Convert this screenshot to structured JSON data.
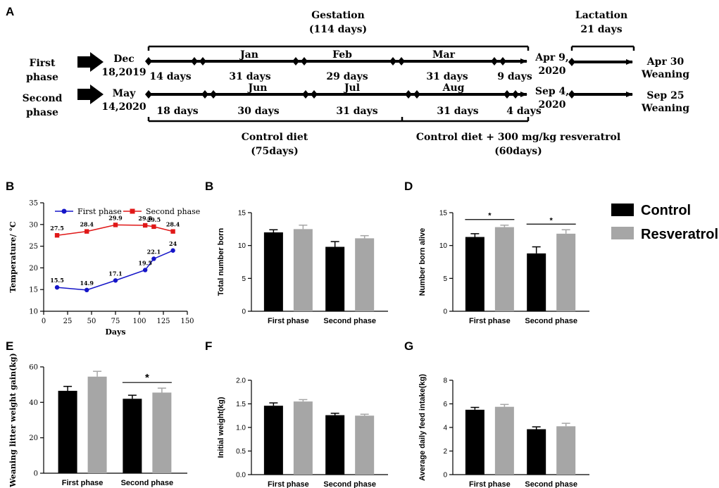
{
  "timeline": {
    "panel_label": "A",
    "gestation_title": "Gestation",
    "gestation_days": "(114 days)",
    "lactation_title": "Lactation",
    "lactation_days": "21 days",
    "first_phase": {
      "label_line1": "First",
      "label_line2": "phase",
      "start_line1": "Dec",
      "start_line2": "18,2019",
      "months": [
        "Jan",
        "Feb",
        "Mar"
      ],
      "segments": [
        "14 days",
        "31 days",
        "29 days",
        "31 days",
        "9 days"
      ],
      "farrow_line1": "Apr 9,",
      "farrow_line2": "2020",
      "wean_line1": "Apr 30",
      "wean_line2": "Weaning"
    },
    "second_phase": {
      "label_line1": "Second",
      "label_line2": "phase",
      "start_line1": "May",
      "start_line2": "14,2020",
      "months": [
        "Jun",
        "Jul",
        "Aug"
      ],
      "segments": [
        "18 days",
        "30 days",
        "31 days",
        "31 days",
        "4 days"
      ],
      "farrow_line1": "Sep 4,",
      "farrow_line2": "2020",
      "wean_line1": "Sep 25",
      "wean_line2": "Weaning"
    },
    "control_diet": "Control diet",
    "control_days": "(75days)",
    "res_diet": "Control diet + 300 mg/kg resveratrol",
    "res_days": "(60days)"
  },
  "legend": {
    "control_label": "Control",
    "resveratrol_label": "Resveratrol",
    "control_color": "#000000",
    "resveratrol_color": "#a6a6a6"
  },
  "chart_data": [
    {
      "panel": "B",
      "type": "line",
      "xlabel": "Days",
      "ylabel": "Temperature/ °C",
      "xlim": [
        0,
        150
      ],
      "ylim": [
        10,
        35
      ],
      "xticks": [
        0,
        25,
        50,
        75,
        100,
        125,
        150
      ],
      "yticks": [
        10,
        15,
        20,
        25,
        30,
        35
      ],
      "series": [
        {
          "name": "First phase",
          "color": "#1515c8",
          "marker": "circle",
          "x": [
            14,
            45,
            75,
            106,
            115,
            135
          ],
          "y": [
            15.5,
            14.9,
            17.1,
            19.5,
            22.1,
            24
          ],
          "labels": [
            "15.5",
            "14.9",
            "17.1",
            "19.5",
            "22.1",
            "24"
          ]
        },
        {
          "name": "Second phase",
          "color": "#e01818",
          "marker": "square",
          "x": [
            14,
            45,
            75,
            106,
            115,
            135
          ],
          "y": [
            27.5,
            28.4,
            29.9,
            29.8,
            29.5,
            28.4
          ],
          "labels": [
            "27.5",
            "28.4",
            "29.9",
            "29.8",
            "29.5",
            "28.4"
          ]
        }
      ]
    },
    {
      "panel": "B",
      "type": "bar",
      "ylabel": "Total number born",
      "categories": [
        "First phase",
        "Second phase"
      ],
      "ylim": [
        0,
        15
      ],
      "yticks": [
        0,
        5,
        10,
        15
      ],
      "series": [
        {
          "name": "Control",
          "values": [
            12.0,
            9.8
          ],
          "errors": [
            0.4,
            0.8
          ]
        },
        {
          "name": "Resveratrol",
          "values": [
            12.5,
            11.1
          ],
          "errors": [
            0.6,
            0.4
          ]
        }
      ],
      "sig": []
    },
    {
      "panel": "D",
      "type": "bar",
      "ylabel": "Number born alive",
      "categories": [
        "First phase",
        "Second phase"
      ],
      "ylim": [
        0,
        15
      ],
      "yticks": [
        0,
        5,
        10,
        15
      ],
      "series": [
        {
          "name": "Control",
          "values": [
            11.3,
            8.8
          ],
          "errors": [
            0.5,
            1.0
          ]
        },
        {
          "name": "Resveratrol",
          "values": [
            12.8,
            11.8
          ],
          "errors": [
            0.3,
            0.6
          ]
        }
      ],
      "sig": [
        {
          "category": 0,
          "symbol": "*"
        },
        {
          "category": 1,
          "symbol": "*"
        }
      ]
    },
    {
      "panel": "E",
      "type": "bar",
      "ylabel": "Weaning litter weight gain(kg)",
      "categories": [
        "First phase",
        "Second phase"
      ],
      "ylim": [
        0,
        60
      ],
      "yticks": [
        0,
        20,
        40,
        60
      ],
      "series": [
        {
          "name": "Control",
          "values": [
            46.5,
            42.0
          ],
          "errors": [
            2.5,
            2.0
          ]
        },
        {
          "name": "Resveratrol",
          "values": [
            54.5,
            45.5
          ],
          "errors": [
            3.0,
            2.5
          ]
        }
      ],
      "sig": [
        {
          "category": 1,
          "symbol": "*"
        }
      ]
    },
    {
      "panel": "F",
      "type": "bar",
      "ylabel": "Initial weight(kg)",
      "categories": [
        "First phase",
        "Second phase"
      ],
      "ylim": [
        0,
        2.0
      ],
      "yticks": [
        0.0,
        0.5,
        1.0,
        1.5,
        2.0
      ],
      "yticklabels": [
        "0.0",
        "0.5",
        "1.0",
        "1.5",
        "2.0"
      ],
      "series": [
        {
          "name": "Control",
          "values": [
            1.46,
            1.26
          ],
          "errors": [
            0.06,
            0.04
          ]
        },
        {
          "name": "Resveratrol",
          "values": [
            1.55,
            1.25
          ],
          "errors": [
            0.04,
            0.03
          ]
        }
      ],
      "sig": []
    },
    {
      "panel": "G",
      "type": "bar",
      "ylabel": "Average daily feed intake(kg)",
      "categories": [
        "First phase",
        "Second phase"
      ],
      "ylim": [
        0,
        8
      ],
      "yticks": [
        0,
        2,
        4,
        6,
        8
      ],
      "series": [
        {
          "name": "Control",
          "values": [
            5.5,
            3.85
          ],
          "errors": [
            0.2,
            0.2
          ]
        },
        {
          "name": "Resveratrol",
          "values": [
            5.75,
            4.1
          ],
          "errors": [
            0.2,
            0.25
          ]
        }
      ],
      "sig": []
    }
  ]
}
